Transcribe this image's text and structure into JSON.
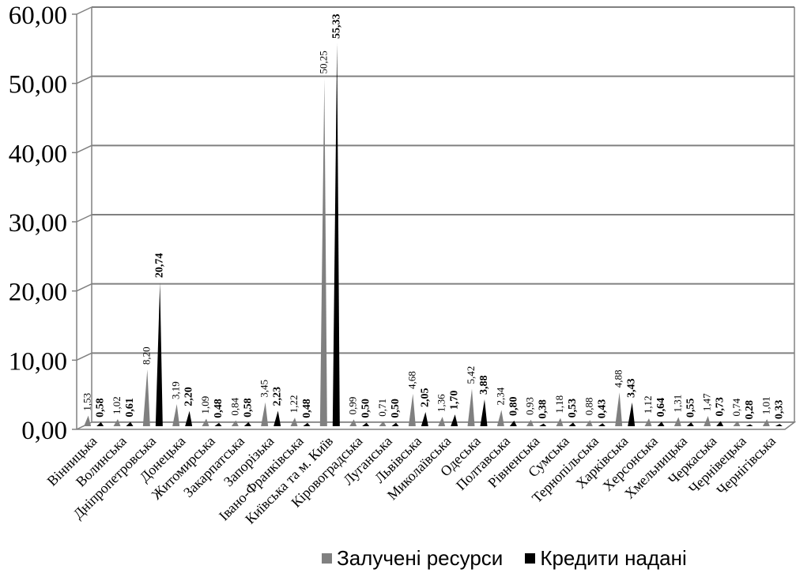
{
  "chart_data": {
    "type": "bar",
    "title": "",
    "xlabel": "",
    "ylabel": "",
    "ylim": [
      0,
      60
    ],
    "yticks": [
      "0,00",
      "10,00",
      "20,00",
      "30,00",
      "40,00",
      "50,00",
      "60,00"
    ],
    "grid": true,
    "legend_position": "bottom",
    "categories": [
      "Вінницька",
      "Волинська",
      "Дніпропетровська",
      "Донецька",
      "Житомирська",
      "Закарпатська",
      "Запорізька",
      "Івано-Франківська",
      "Київська та м. Київ",
      "Кіровоградська",
      "Луганська",
      "Львівська",
      "Миколаївська",
      "Одеська",
      "Полтавська",
      "Рівненська",
      "Сумська",
      "Тернопільська",
      "Харківська",
      "Херсонська",
      "Хмельницька",
      "Черкаська",
      "Чернівецька",
      "Чернігівська"
    ],
    "series": [
      {
        "name": "Залучені ресурси",
        "color": "#808080",
        "values": [
          1.53,
          1.02,
          8.2,
          3.19,
          1.09,
          0.84,
          3.45,
          1.22,
          50.25,
          0.99,
          0.71,
          4.68,
          1.36,
          5.42,
          2.34,
          0.93,
          1.18,
          0.88,
          4.88,
          1.12,
          1.31,
          1.47,
          0.74,
          1.01
        ],
        "labels": [
          "1,53",
          "1,02",
          "8,20",
          "3,19",
          "1,09",
          "0,84",
          "3,45",
          "1,22",
          "50,25",
          "0,99",
          "0,71",
          "4,68",
          "1,36",
          "5,42",
          "2,34",
          "0,93",
          "1,18",
          "0,88",
          "4,88",
          "1,12",
          "1,31",
          "1,47",
          "0,74",
          "1,01"
        ]
      },
      {
        "name": "Кредити надані",
        "color": "#000000",
        "values": [
          0.58,
          0.61,
          20.74,
          2.2,
          0.48,
          0.58,
          2.23,
          0.48,
          55.33,
          0.5,
          0.5,
          2.05,
          1.7,
          3.88,
          0.8,
          0.38,
          0.53,
          0.43,
          3.43,
          0.64,
          0.55,
          0.73,
          0.28,
          0.33
        ],
        "labels": [
          "0,58",
          "0,61",
          "20,74",
          "2,20",
          "0,48",
          "0,58",
          "2,23",
          "0,48",
          "55,33",
          "0,50",
          "0,50",
          "2,05",
          "1,70",
          "3,88",
          "0,80",
          "0,38",
          "0,53",
          "0,43",
          "3,43",
          "0,64",
          "0,55",
          "0,73",
          "0,28",
          "0,33"
        ]
      }
    ]
  }
}
